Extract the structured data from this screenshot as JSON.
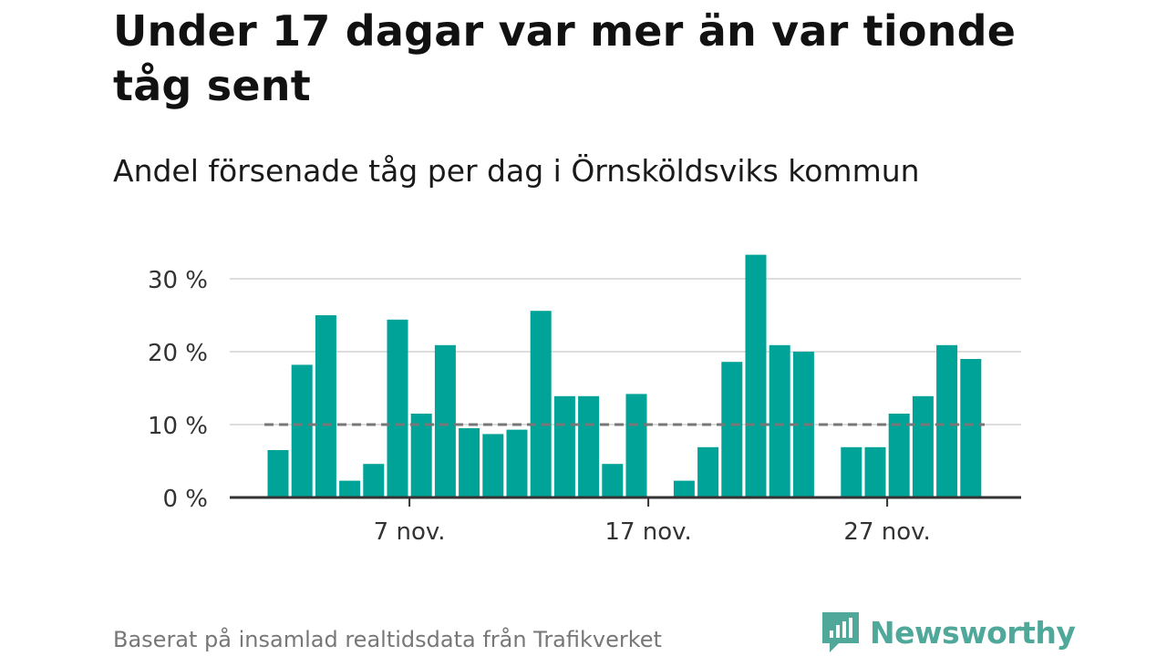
{
  "title": "Under 17 dagar var mer än var tionde tåg sent",
  "subtitle": "Andel försenade tåg per dag i Örnsköldsviks kommun",
  "source": "Baserat på insamlad realtidsdata från Trafikverket",
  "brand": {
    "name": "Newsworthy",
    "icon": "newsworthy-logo-icon",
    "color": "#4fa89a"
  },
  "colors": {
    "bar": "#00a398",
    "reference": "#777777",
    "grid": "#dddddd",
    "axis": "#333333"
  },
  "chart_data": {
    "type": "bar",
    "title": "Under 17 dagar var mer än var tionde tåg sent",
    "subtitle": "Andel försenade tåg per dag i Örnsköldsviks kommun",
    "xlabel": "",
    "ylabel": "",
    "ylim": [
      0,
      34
    ],
    "yticks": [
      0,
      10,
      20,
      30
    ],
    "ytick_labels": [
      "0 %",
      "10 %",
      "20 %",
      "30 %"
    ],
    "xticks": [
      7,
      17,
      27
    ],
    "xtick_labels": [
      "7 nov.",
      "17 nov.",
      "27 nov."
    ],
    "grid": true,
    "reference_line": 10,
    "days": [
      1,
      2,
      3,
      4,
      5,
      6,
      7,
      8,
      9,
      10,
      11,
      12,
      13,
      14,
      15,
      16,
      17,
      18,
      19,
      20,
      21,
      22,
      23,
      24,
      25,
      26,
      27,
      28,
      29,
      30,
      31
    ],
    "values": [
      6.5,
      18.2,
      25.0,
      2.3,
      4.6,
      24.4,
      11.5,
      20.9,
      9.5,
      8.7,
      9.3,
      25.6,
      13.9,
      13.9,
      4.6,
      14.2,
      0,
      2.3,
      6.9,
      18.6,
      33.3,
      20.9,
      20.0,
      0,
      6.9,
      6.9,
      11.5,
      13.9,
      20.9,
      19.0,
      null
    ]
  }
}
